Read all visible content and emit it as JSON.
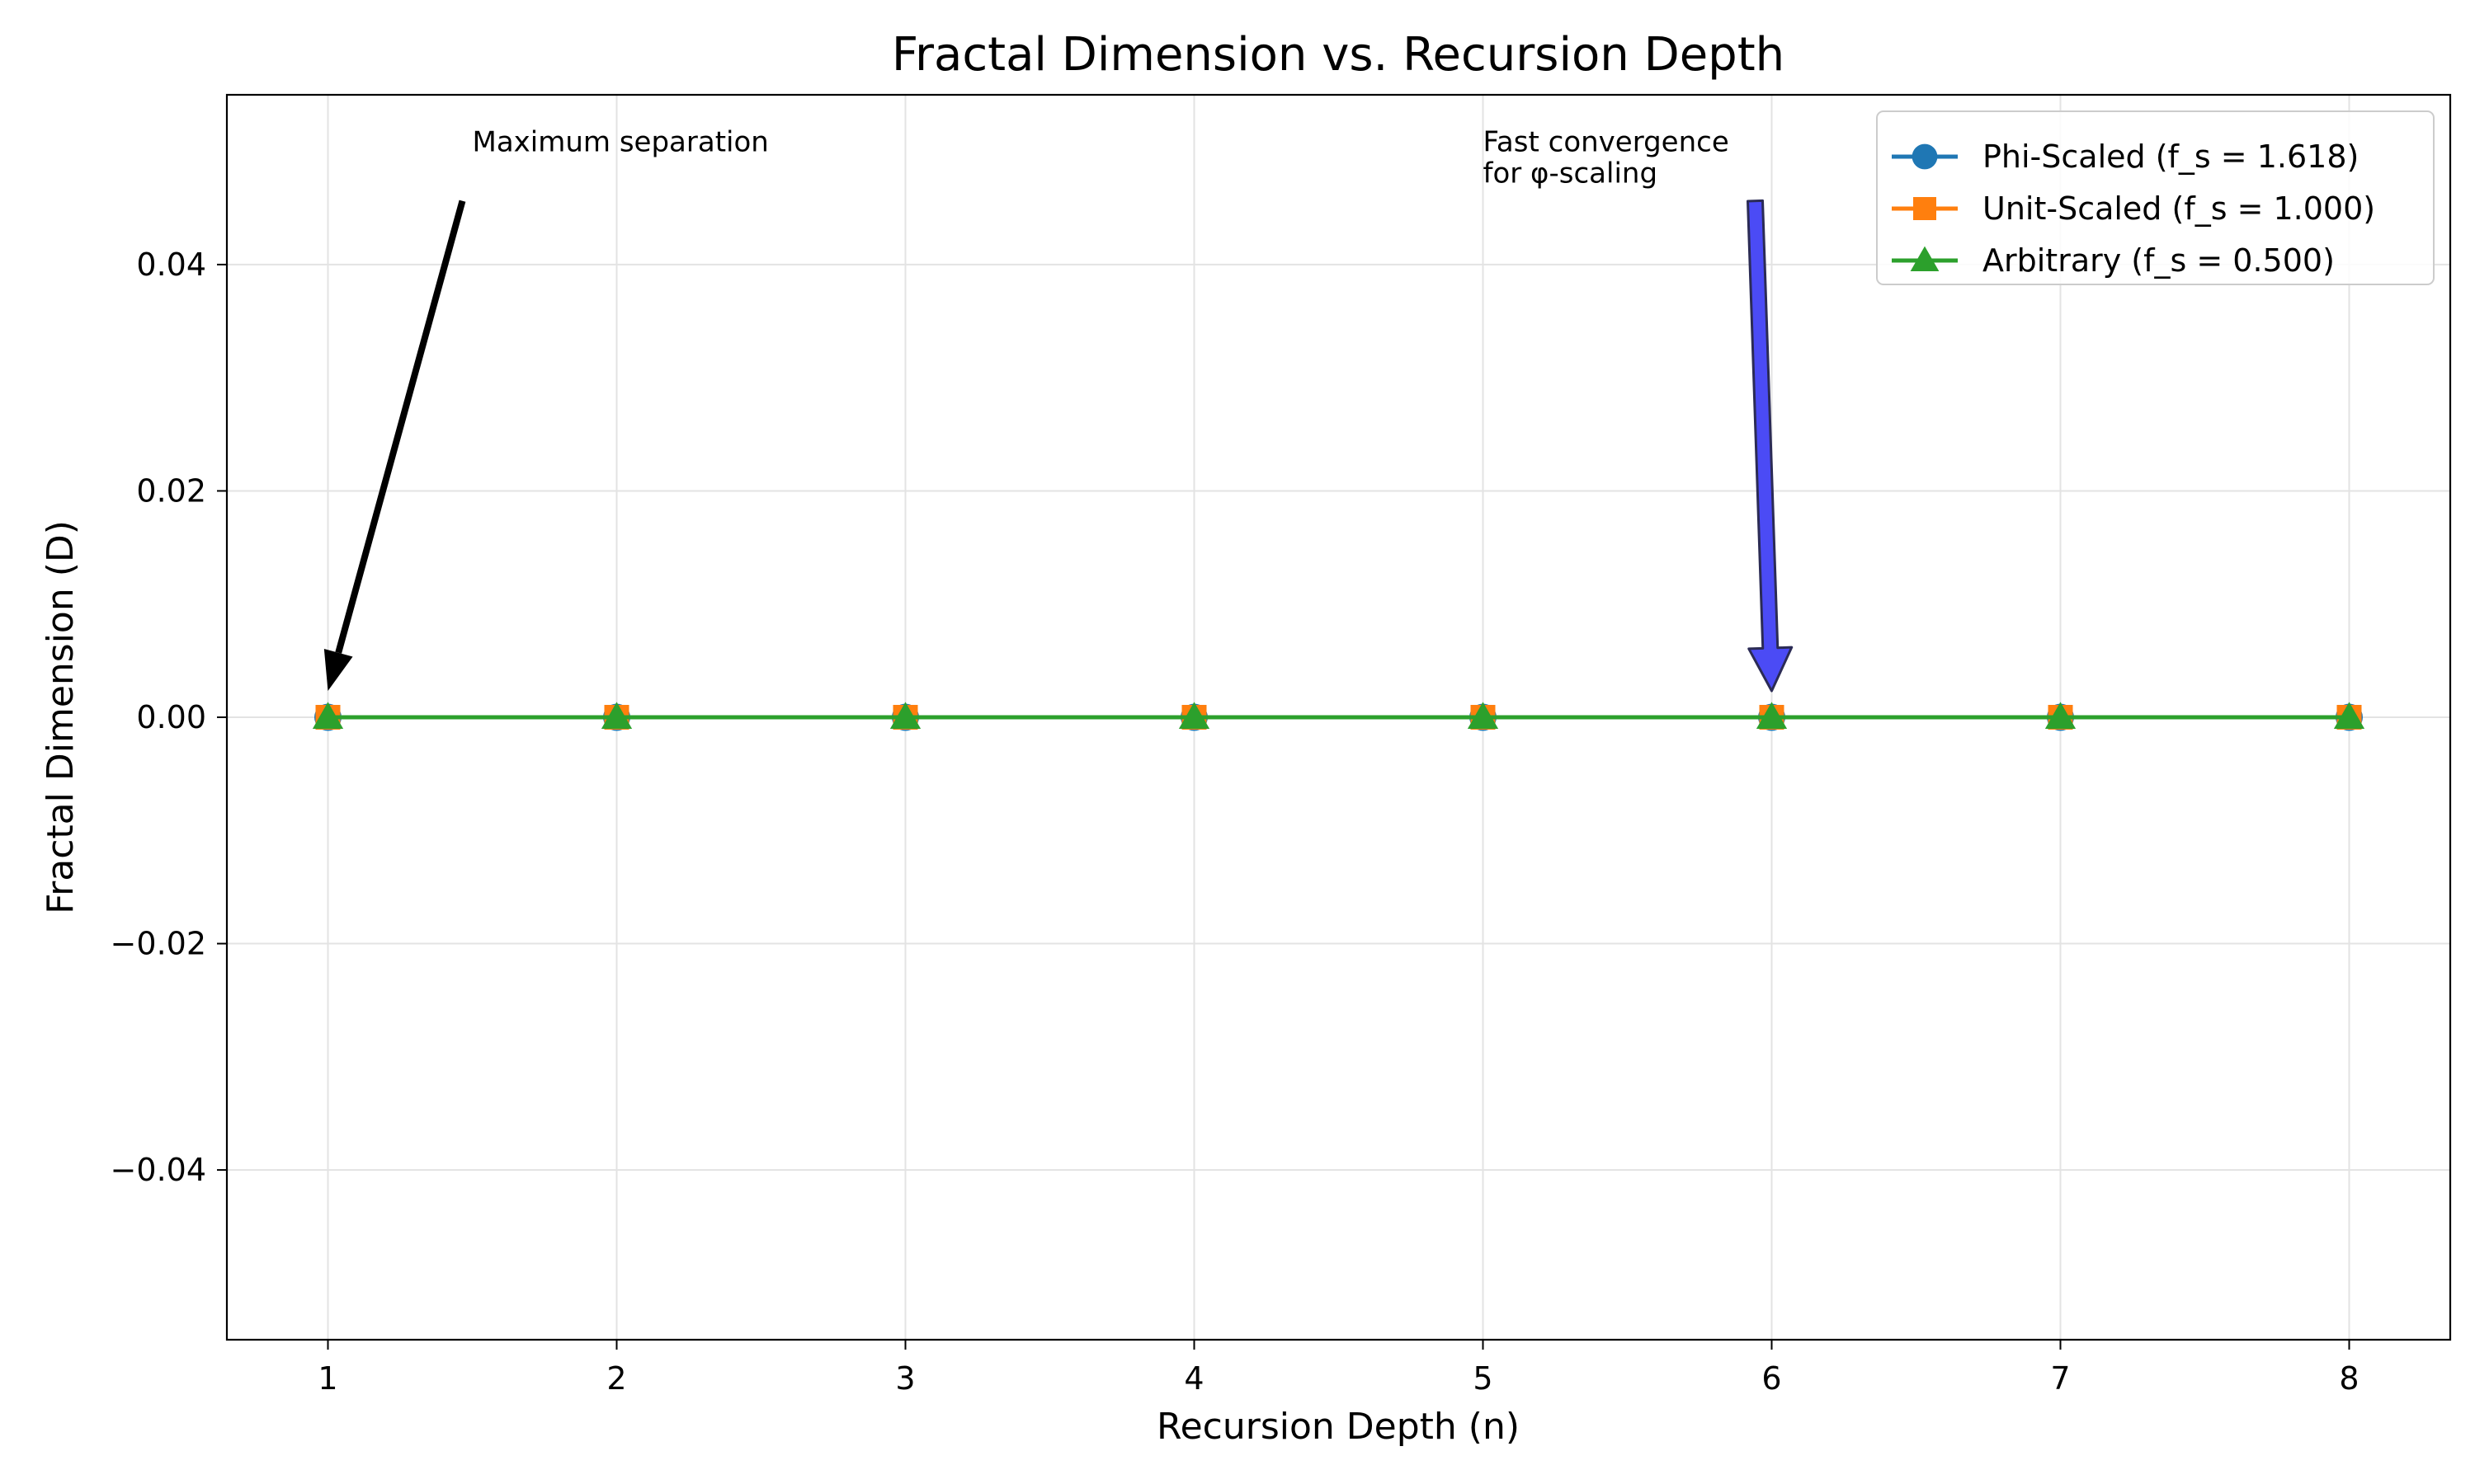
{
  "chart_data": {
    "type": "line",
    "title": "Fractal Dimension vs. Recursion Depth",
    "xlabel": "Recursion Depth (n)",
    "ylabel": "Fractal Dimension (D)",
    "xlim": [
      0.65,
      8.35
    ],
    "ylim": [
      -0.055,
      0.055
    ],
    "xticks": [
      1,
      2,
      3,
      4,
      5,
      6,
      7,
      8
    ],
    "yticks": [
      -0.04,
      -0.02,
      0.0,
      0.02,
      0.04
    ],
    "ytick_labels": [
      "−0.04",
      "−0.02",
      "0.00",
      "0.02",
      "0.04"
    ],
    "grid": true,
    "legend_position": "upper right",
    "series": [
      {
        "name": "Phi-Scaled (f_s = 1.618)",
        "color": "#1f77b4",
        "marker": "circle",
        "x": [
          1,
          2,
          3,
          4,
          5,
          6,
          7,
          8
        ],
        "y": [
          0,
          0,
          0,
          0,
          0,
          0,
          0,
          0
        ]
      },
      {
        "name": "Unit-Scaled (f_s = 1.000)",
        "color": "#ff7f0e",
        "marker": "square",
        "x": [
          1,
          2,
          3,
          4,
          5,
          6,
          7,
          8
        ],
        "y": [
          0,
          0,
          0,
          0,
          0,
          0,
          0,
          0
        ]
      },
      {
        "name": "Arbitrary (f_s = 0.500)",
        "color": "#2ca02c",
        "marker": "triangle",
        "x": [
          1,
          2,
          3,
          4,
          5,
          6,
          7,
          8
        ],
        "y": [
          0,
          0,
          0,
          0,
          0,
          0,
          0,
          0
        ]
      }
    ],
    "annotations": [
      {
        "lines": [
          "Maximum separation"
        ],
        "text_at": [
          1.5,
          0.05
        ],
        "point_at": [
          1,
          0
        ],
        "arrow_color": "#000000",
        "arrow_style": "thin"
      },
      {
        "lines": [
          "Fast convergence",
          "for φ-scaling"
        ],
        "text_at": [
          5.0,
          0.05
        ],
        "point_at": [
          6,
          0
        ],
        "arrow_color": "#4b4bf5",
        "arrow_style": "wide"
      }
    ]
  }
}
